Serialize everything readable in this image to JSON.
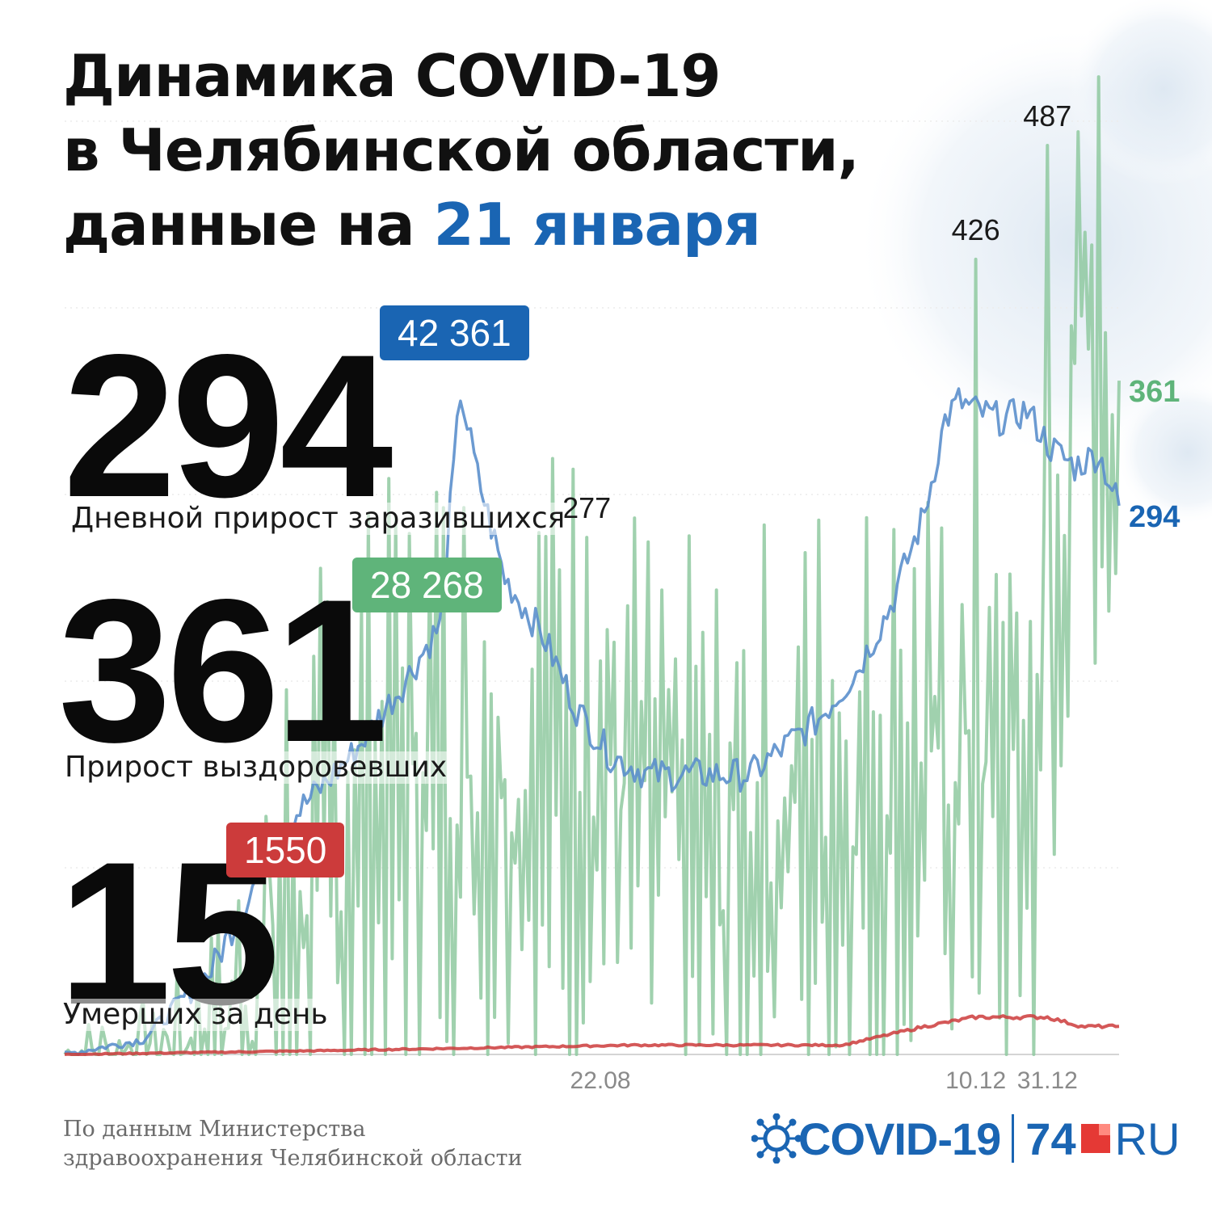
{
  "title": {
    "line1": "Динамика COVID-19",
    "line2": "в Челябинской области,",
    "line3_prefix": "данные на ",
    "date": "21 января"
  },
  "stats": {
    "cases": {
      "value": "294",
      "total": "42 361",
      "label": "Дневной прирост заразившихся"
    },
    "recovered": {
      "value": "361",
      "total": "28 268",
      "label": "Прирост выздоровевших"
    },
    "deaths": {
      "value": "15",
      "total": "1550",
      "label": "Умерших за день"
    }
  },
  "colors": {
    "cases": "#5b8fcc",
    "cases_end": "#1a65b3",
    "recovered": "#8fc9a0",
    "recovered_end": "#5fb47a",
    "deaths": "#cc3b3b",
    "axis_text": "#8a8a8a"
  },
  "chart_data": {
    "type": "line",
    "title": "",
    "xlabel": "",
    "ylabel": "",
    "x_start": "2020-03-18",
    "x_end": "2021-01-21",
    "x_ticks": [
      {
        "date": "2020-08-22",
        "label": "22.08"
      },
      {
        "date": "2020-12-10",
        "label": "10.12"
      },
      {
        "date": "2020-12-31",
        "label": "31.12"
      }
    ],
    "ylim": [
      0,
      500
    ],
    "grid": true,
    "series": [
      {
        "name": "Дневной прирост заразившихся",
        "key": "cases",
        "end_label": "294",
        "anchors": [
          [
            "2020-03-18",
            0
          ],
          [
            "2020-04-10",
            8
          ],
          [
            "2020-04-30",
            45
          ],
          [
            "2020-05-20",
            120
          ],
          [
            "2020-06-10",
            160
          ],
          [
            "2020-06-25",
            198
          ],
          [
            "2020-07-06",
            230
          ],
          [
            "2020-07-12",
            355
          ],
          [
            "2020-07-17",
            310
          ],
          [
            "2020-07-25",
            255
          ],
          [
            "2020-08-05",
            225
          ],
          [
            "2020-08-15",
            185
          ],
          [
            "2020-08-25",
            160
          ],
          [
            "2020-09-05",
            150
          ],
          [
            "2020-09-20",
            150
          ],
          [
            "2020-10-05",
            150
          ],
          [
            "2020-10-15",
            165
          ],
          [
            "2020-10-25",
            180
          ],
          [
            "2020-11-05",
            205
          ],
          [
            "2020-11-15",
            240
          ],
          [
            "2020-11-25",
            290
          ],
          [
            "2020-12-01",
            340
          ],
          [
            "2020-12-05",
            350
          ],
          [
            "2020-12-10",
            345
          ],
          [
            "2020-12-18",
            340
          ],
          [
            "2020-12-25",
            345
          ],
          [
            "2021-01-01",
            325
          ],
          [
            "2021-01-08",
            315
          ],
          [
            "2021-01-15",
            322
          ],
          [
            "2021-01-21",
            294
          ]
        ]
      },
      {
        "name": "Прирост выздоровевших",
        "key": "recovered",
        "end_label": "361",
        "anchors": [
          [
            "2020-03-18",
            0
          ],
          [
            "2020-04-15",
            5
          ],
          [
            "2020-05-01",
            15
          ],
          [
            "2020-05-20",
            60
          ],
          [
            "2020-06-10",
            110
          ],
          [
            "2020-06-30",
            150
          ],
          [
            "2020-07-15",
            150
          ],
          [
            "2020-08-01",
            150
          ],
          [
            "2020-08-14",
            160
          ],
          [
            "2020-08-22",
            150
          ],
          [
            "2020-09-05",
            120
          ],
          [
            "2020-09-25",
            95
          ],
          [
            "2020-10-10",
            115
          ],
          [
            "2020-10-25",
            130
          ],
          [
            "2020-11-10",
            130
          ],
          [
            "2020-11-25",
            140
          ],
          [
            "2020-12-05",
            150
          ],
          [
            "2020-12-15",
            140
          ],
          [
            "2020-12-25",
            140
          ],
          [
            "2021-01-02",
            175
          ],
          [
            "2021-01-06",
            330
          ],
          [
            "2021-01-10",
            380
          ],
          [
            "2021-01-14",
            370
          ],
          [
            "2021-01-21",
            361
          ]
        ],
        "peaks": [
          [
            "2020-08-18",
            277
          ],
          [
            "2020-12-10",
            426
          ],
          [
            "2020-12-31",
            487
          ]
        ]
      },
      {
        "name": "Умершие за день",
        "key": "deaths",
        "anchors": [
          [
            "2020-03-18",
            0
          ],
          [
            "2020-06-01",
            2
          ],
          [
            "2020-09-01",
            5
          ],
          [
            "2020-11-01",
            5
          ],
          [
            "2020-11-25",
            15
          ],
          [
            "2020-12-10",
            20
          ],
          [
            "2020-12-31",
            20
          ],
          [
            "2021-01-10",
            15
          ],
          [
            "2021-01-21",
            15
          ]
        ]
      }
    ]
  }
}
